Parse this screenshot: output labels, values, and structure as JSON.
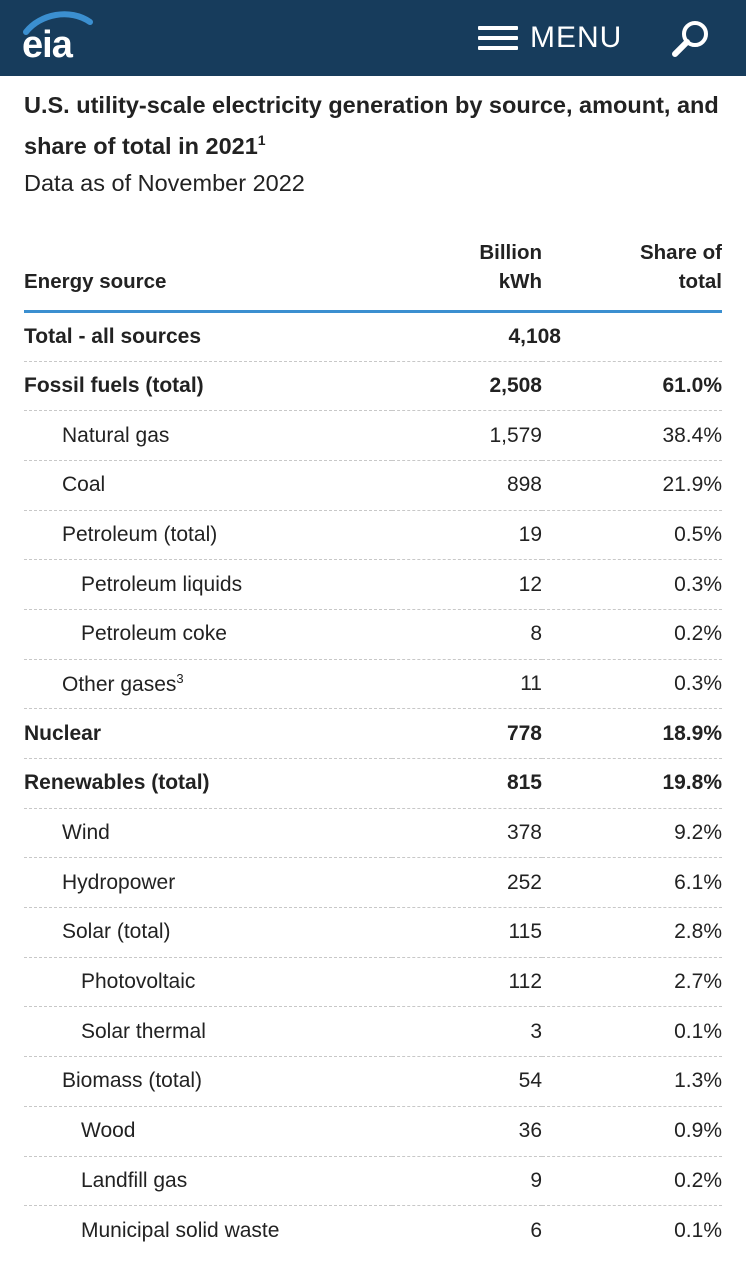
{
  "header": {
    "logo_text": "eia",
    "menu_label": "MENU",
    "icons": [
      "hamburger-icon",
      "search-icon"
    ],
    "colors": {
      "bar": "#173c5c",
      "accent": "#3b8fd0"
    }
  },
  "page": {
    "title": "U.S. utility-scale electricity generation by source, amount, and share of total in 2021",
    "title_footnote": "1",
    "subtitle": "Data as of November 2022"
  },
  "table": {
    "headers": {
      "source": "Energy source",
      "kwh_line1": "Billion",
      "kwh_line2": "kWh",
      "share_line1": "Share of",
      "share_line2": "total"
    },
    "rows": [
      {
        "source": "Total - all sources",
        "kwh": "4,108",
        "share": "",
        "level": 0,
        "bold": true,
        "footnote": ""
      },
      {
        "source": "Fossil fuels (total)",
        "kwh": "2,508",
        "share": "61.0%",
        "level": 0,
        "bold": true,
        "footnote": ""
      },
      {
        "source": "Natural gas",
        "kwh": "1,579",
        "share": "38.4%",
        "level": 1,
        "bold": false,
        "footnote": ""
      },
      {
        "source": "Coal",
        "kwh": "898",
        "share": "21.9%",
        "level": 1,
        "bold": false,
        "footnote": ""
      },
      {
        "source": "Petroleum (total)",
        "kwh": "19",
        "share": "0.5%",
        "level": 1,
        "bold": false,
        "footnote": ""
      },
      {
        "source": "Petroleum liquids",
        "kwh": "12",
        "share": "0.3%",
        "level": 2,
        "bold": false,
        "footnote": ""
      },
      {
        "source": "Petroleum coke",
        "kwh": "8",
        "share": "0.2%",
        "level": 2,
        "bold": false,
        "footnote": ""
      },
      {
        "source": "Other gases",
        "kwh": "11",
        "share": "0.3%",
        "level": 1,
        "bold": false,
        "footnote": "3"
      },
      {
        "source": "Nuclear",
        "kwh": "778",
        "share": "18.9%",
        "level": 0,
        "bold": true,
        "footnote": ""
      },
      {
        "source": "Renewables (total)",
        "kwh": "815",
        "share": "19.8%",
        "level": 0,
        "bold": true,
        "footnote": ""
      },
      {
        "source": "Wind",
        "kwh": "378",
        "share": "9.2%",
        "level": 1,
        "bold": false,
        "footnote": ""
      },
      {
        "source": "Hydropower",
        "kwh": "252",
        "share": "6.1%",
        "level": 1,
        "bold": false,
        "footnote": ""
      },
      {
        "source": "Solar (total)",
        "kwh": "115",
        "share": "2.8%",
        "level": 1,
        "bold": false,
        "footnote": ""
      },
      {
        "source": "Photovoltaic",
        "kwh": "112",
        "share": "2.7%",
        "level": 2,
        "bold": false,
        "footnote": ""
      },
      {
        "source": "Solar thermal",
        "kwh": "3",
        "share": "0.1%",
        "level": 2,
        "bold": false,
        "footnote": ""
      },
      {
        "source": "Biomass (total)",
        "kwh": "54",
        "share": "1.3%",
        "level": 1,
        "bold": false,
        "footnote": ""
      },
      {
        "source": "Wood",
        "kwh": "36",
        "share": "0.9%",
        "level": 2,
        "bold": false,
        "footnote": ""
      },
      {
        "source": "Landfill gas",
        "kwh": "9",
        "share": "0.2%",
        "level": 2,
        "bold": false,
        "footnote": ""
      },
      {
        "source": "Municipal solid waste",
        "kwh": "6",
        "share": "0.1%",
        "level": 2,
        "bold": false,
        "footnote": ""
      }
    ]
  }
}
